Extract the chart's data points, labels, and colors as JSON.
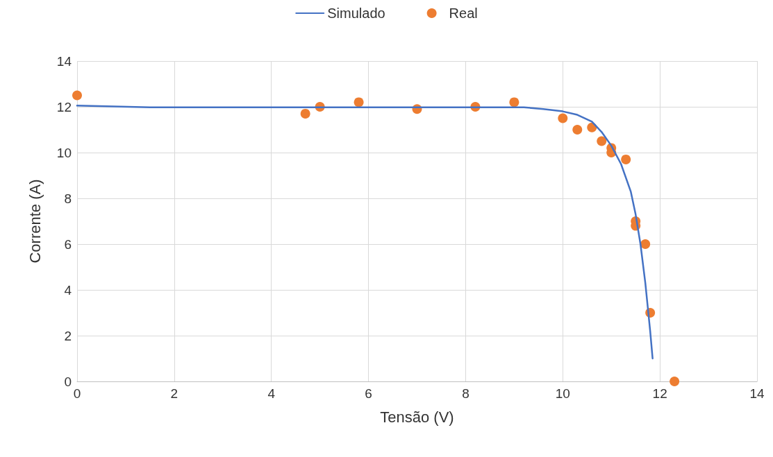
{
  "chart_data": {
    "type": "line",
    "xlabel": "Tensão (V)",
    "ylabel": "Corrente (A)",
    "xlim": [
      0,
      14
    ],
    "xticks": [
      0,
      2,
      4,
      6,
      8,
      10,
      12,
      14
    ],
    "ylim": [
      0,
      14
    ],
    "yticks": [
      0,
      2,
      4,
      6,
      8,
      10,
      12,
      14
    ],
    "grid": true,
    "legend": "top",
    "series": [
      {
        "name": "Simulado",
        "color": "#4472c4",
        "marker": "none",
        "x": [
          0,
          1.5,
          9.2,
          9.6,
          10.0,
          10.3,
          10.6,
          10.8,
          11.0,
          11.2,
          11.4,
          11.5,
          11.6,
          11.7,
          11.8,
          11.85
        ],
        "values": [
          12.05,
          11.98,
          11.98,
          11.9,
          11.8,
          11.65,
          11.35,
          10.9,
          10.3,
          9.5,
          8.3,
          7.3,
          6.0,
          4.3,
          2.2,
          1.0
        ]
      },
      {
        "name": "Real",
        "type": "scatter",
        "color": "#ed7d31",
        "marker": "circle",
        "x": [
          0,
          4.7,
          5.0,
          5.8,
          7.0,
          8.2,
          9.0,
          10.0,
          10.3,
          10.6,
          10.8,
          11.0,
          11.0,
          11.3,
          11.5,
          11.5,
          11.7,
          11.8,
          12.3
        ],
        "values": [
          12.5,
          11.7,
          12.0,
          12.2,
          11.9,
          12.0,
          12.2,
          11.5,
          11.0,
          11.1,
          10.5,
          10.2,
          10.0,
          9.7,
          7.0,
          6.8,
          6.0,
          3.0,
          0
        ]
      }
    ]
  }
}
